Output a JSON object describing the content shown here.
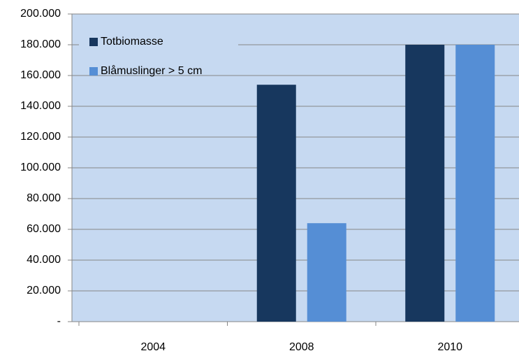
{
  "chart_data": {
    "type": "bar",
    "categories": [
      "2004",
      "2008",
      "2010"
    ],
    "series": [
      {
        "name": "Totbiomasse",
        "color": "#17375e",
        "values": [
          null,
          154000,
          180000
        ]
      },
      {
        "name": "Blåmuslinger > 5 cm",
        "color": "#558ed5",
        "values": [
          null,
          64000,
          180000
        ]
      }
    ],
    "ylim": [
      0,
      200000
    ],
    "yticks": [
      {
        "value": 0,
        "label": "-"
      },
      {
        "value": 20000,
        "label": "20.000"
      },
      {
        "value": 40000,
        "label": "40.000"
      },
      {
        "value": 60000,
        "label": "60.000"
      },
      {
        "value": 80000,
        "label": "80.000"
      },
      {
        "value": 100000,
        "label": "100.000"
      },
      {
        "value": 120000,
        "label": "120.000"
      },
      {
        "value": 140000,
        "label": "140.000"
      },
      {
        "value": 160000,
        "label": "160.000"
      },
      {
        "value": 180000,
        "label": "180.000"
      },
      {
        "value": 200000,
        "label": "200.000"
      }
    ],
    "grid": true,
    "legend": "upper left"
  }
}
